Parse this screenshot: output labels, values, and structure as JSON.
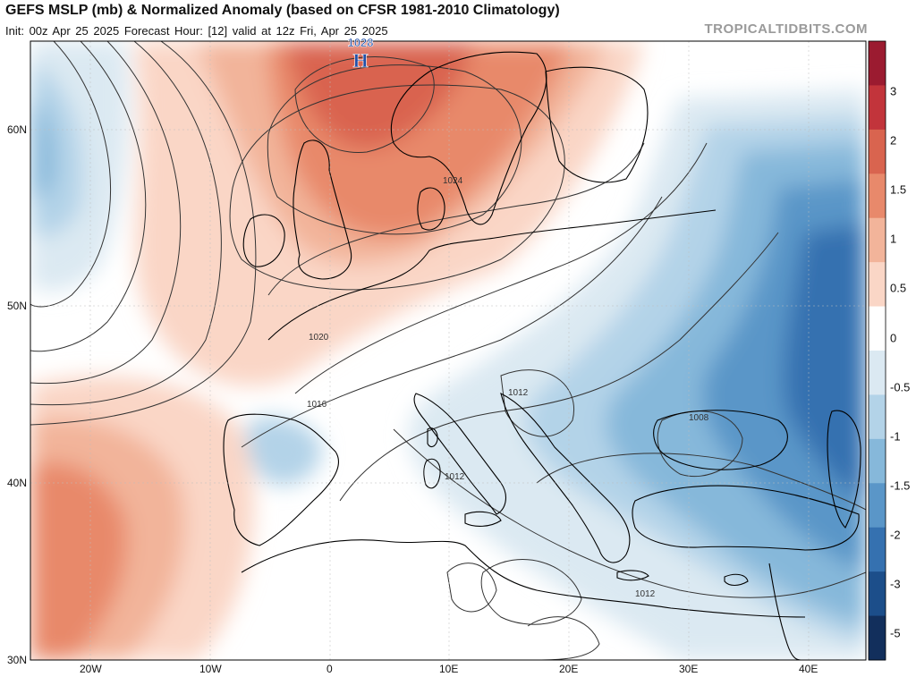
{
  "header": {
    "title": "GEFS MSLP (mb) & Normalized Anomaly (based on CFSR 1981-2010 Climatology)",
    "subtitle": "Init: 00z Apr 25 2025   Forecast Hour: [12]   valid at 12z Fri, Apr 25 2025",
    "source": "TROPICALTIDBITS.COM"
  },
  "map": {
    "lat_labels": [
      "60N",
      "50N",
      "40N",
      "30N"
    ],
    "lon_labels": [
      "20W",
      "10W",
      "0",
      "10E",
      "20E",
      "30E",
      "40E"
    ],
    "high_center": {
      "value": "1028",
      "symbol": "H"
    },
    "contour_labels": [
      "1024",
      "1020",
      "1016",
      "1012",
      "1012",
      "1012",
      "1008"
    ]
  },
  "colorbar": {
    "labels": [
      "3",
      "2",
      "1.5",
      "1",
      "0.5",
      "0",
      "-0.5",
      "-1",
      "-1.5",
      "-2",
      "-3",
      "-5"
    ],
    "colors": [
      "#9b1b30",
      "#c2343b",
      "#d9644f",
      "#e8896b",
      "#f2b49a",
      "#fad6c6",
      "#ffffff",
      "#dbe9f2",
      "#b3d3e8",
      "#86b8da",
      "#5a96c8",
      "#3571b0",
      "#1c4e8a",
      "#122f5c"
    ]
  }
}
